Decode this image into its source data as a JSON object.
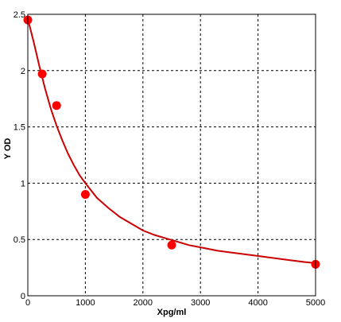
{
  "chart_data": {
    "type": "scatter",
    "title": "",
    "xlabel": "Xpg/ml",
    "ylabel": "Y OD",
    "xlim": [
      0,
      5000
    ],
    "ylim": [
      0,
      2.5
    ],
    "xticks": [
      0,
      1000,
      2000,
      3000,
      4000,
      5000
    ],
    "xtick_labels": [
      "0",
      "1000",
      "2000",
      "3000",
      "4000",
      "5000"
    ],
    "yticks": [
      0,
      0.5,
      1,
      1.5,
      2,
      2.5
    ],
    "ytick_labels": [
      "0",
      "0.5",
      "1",
      "1.5",
      "2",
      "2.5"
    ],
    "grid": true,
    "grid_style": "dashed",
    "legend": "none",
    "series": [
      {
        "kind": "points",
        "color": "#ff0000",
        "x": [
          0,
          250,
          500,
          1000,
          2500,
          5000
        ],
        "y": [
          2.45,
          1.97,
          1.69,
          0.9,
          0.45,
          0.28
        ]
      },
      {
        "kind": "fitted-curve",
        "color": "#cc0000",
        "x": [
          0,
          100,
          200,
          300,
          400,
          500,
          600,
          700,
          800,
          900,
          1000,
          1200,
          1400,
          1600,
          1800,
          2000,
          2200,
          2400,
          2600,
          2800,
          3000,
          3300,
          3600,
          3900,
          4200,
          4500,
          4800,
          5000
        ],
        "y": [
          2.46,
          2.26,
          2.04,
          1.84,
          1.66,
          1.51,
          1.38,
          1.26,
          1.16,
          1.07,
          1.0,
          0.87,
          0.78,
          0.7,
          0.64,
          0.58,
          0.54,
          0.51,
          0.48,
          0.45,
          0.43,
          0.4,
          0.38,
          0.36,
          0.34,
          0.32,
          0.3,
          0.29
        ]
      }
    ]
  }
}
